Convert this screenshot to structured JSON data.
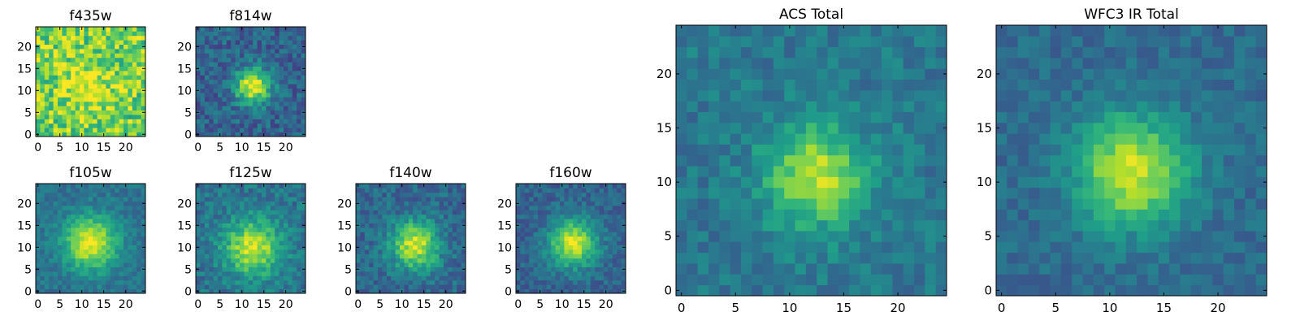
{
  "chart_data": [
    {
      "type": "heatmap",
      "title": "f435w",
      "colormap": "viridis",
      "grid_size": 25,
      "xticks": [
        "0",
        "5",
        "10",
        "15",
        "20"
      ],
      "yticks": [
        "0",
        "5",
        "10",
        "15",
        "20"
      ],
      "xlim": [
        0,
        24
      ],
      "ylim": [
        0,
        24
      ],
      "peak": [
        11,
        11
      ],
      "sigma": 4.0,
      "amplitude": 0.2,
      "noise": 0.22,
      "background": 0.78,
      "seed": 11
    },
    {
      "type": "heatmap",
      "title": "f814w",
      "colormap": "viridis",
      "grid_size": 25,
      "xticks": [
        "0",
        "5",
        "10",
        "15",
        "20"
      ],
      "yticks": [
        "0",
        "5",
        "10",
        "15",
        "20"
      ],
      "xlim": [
        0,
        24
      ],
      "ylim": [
        0,
        24
      ],
      "peak": [
        12.5,
        11
      ],
      "sigma": 2.8,
      "amplitude": 0.68,
      "noise": 0.14,
      "background": 0.32,
      "seed": 23
    },
    {
      "type": "heatmap",
      "title": "f105w",
      "colormap": "viridis",
      "grid_size": 25,
      "xticks": [
        "0",
        "5",
        "10",
        "15",
        "20"
      ],
      "yticks": [
        "0",
        "5",
        "10",
        "15",
        "20"
      ],
      "xlim": [
        0,
        24
      ],
      "ylim": [
        0,
        24
      ],
      "peak": [
        12,
        11
      ],
      "sigma": 4.2,
      "amplitude": 0.6,
      "noise": 0.09,
      "background": 0.38,
      "seed": 37
    },
    {
      "type": "heatmap",
      "title": "f125w",
      "colormap": "viridis",
      "grid_size": 25,
      "xticks": [
        "0",
        "5",
        "10",
        "15",
        "20"
      ],
      "yticks": [
        "0",
        "5",
        "10",
        "15",
        "20"
      ],
      "xlim": [
        0,
        24
      ],
      "ylim": [
        0,
        24
      ],
      "peak": [
        12.5,
        10
      ],
      "sigma": 4.5,
      "amplitude": 0.55,
      "noise": 0.12,
      "background": 0.38,
      "seed": 41
    },
    {
      "type": "heatmap",
      "title": "f140w",
      "colormap": "viridis",
      "grid_size": 25,
      "xticks": [
        "0",
        "5",
        "10",
        "15",
        "20"
      ],
      "yticks": [
        "0",
        "5",
        "10",
        "15",
        "20"
      ],
      "xlim": [
        0,
        24
      ],
      "ylim": [
        0,
        24
      ],
      "peak": [
        13,
        10.5
      ],
      "sigma": 3.8,
      "amplitude": 0.6,
      "noise": 0.12,
      "background": 0.34,
      "seed": 53
    },
    {
      "type": "heatmap",
      "title": "f160w",
      "colormap": "viridis",
      "grid_size": 25,
      "xticks": [
        "0",
        "5",
        "10",
        "15",
        "20"
      ],
      "yticks": [
        "0",
        "5",
        "10",
        "15",
        "20"
      ],
      "xlim": [
        0,
        24
      ],
      "ylim": [
        0,
        24
      ],
      "peak": [
        12.5,
        11
      ],
      "sigma": 3.8,
      "amplitude": 0.62,
      "noise": 0.1,
      "background": 0.32,
      "seed": 67
    },
    {
      "type": "heatmap",
      "title": "ACS Total",
      "colormap": "viridis",
      "grid_size": 25,
      "xticks": [
        "0",
        "5",
        "10",
        "15",
        "20"
      ],
      "yticks": [
        "0",
        "5",
        "10",
        "15",
        "20"
      ],
      "xlim": [
        0,
        24
      ],
      "ylim": [
        0,
        24
      ],
      "peak": [
        12.5,
        10.5
      ],
      "sigma": 3.3,
      "amplitude": 0.5,
      "noise": 0.1,
      "background": 0.4,
      "seed": 79
    },
    {
      "type": "heatmap",
      "title": "WFC3 IR Total",
      "colormap": "viridis",
      "grid_size": 25,
      "xticks": [
        "0",
        "5",
        "10",
        "15",
        "20"
      ],
      "yticks": [
        "0",
        "5",
        "10",
        "15",
        "20"
      ],
      "xlim": [
        0,
        24
      ],
      "ylim": [
        0,
        24
      ],
      "peak": [
        12,
        11
      ],
      "sigma": 3.6,
      "amplitude": 0.58,
      "noise": 0.08,
      "background": 0.35,
      "seed": 97
    }
  ]
}
